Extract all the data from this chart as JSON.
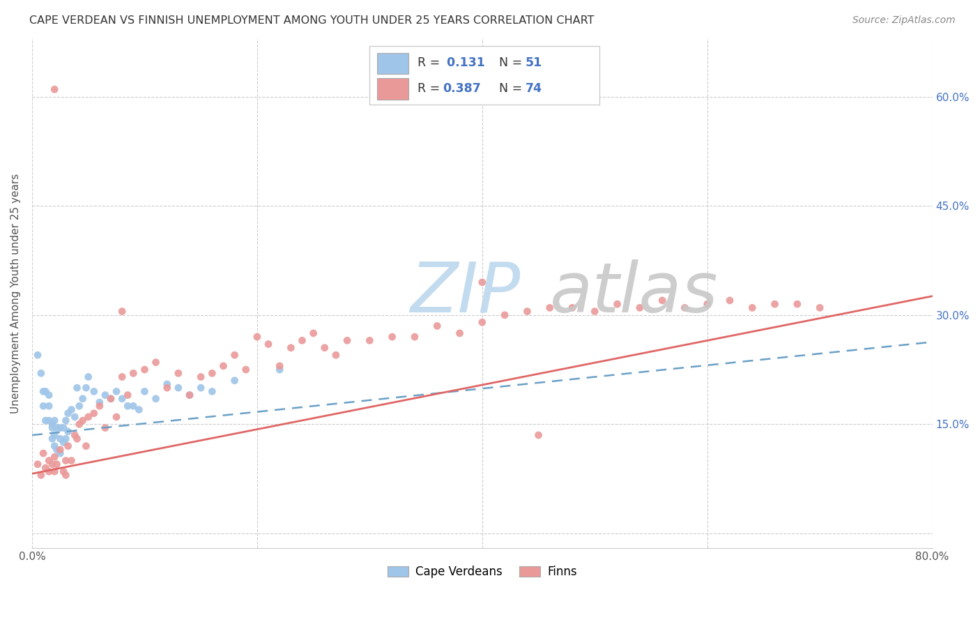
{
  "title": "CAPE VERDEAN VS FINNISH UNEMPLOYMENT AMONG YOUTH UNDER 25 YEARS CORRELATION CHART",
  "source": "Source: ZipAtlas.com",
  "ylabel": "Unemployment Among Youth under 25 years",
  "xlim": [
    0.0,
    0.8
  ],
  "ylim": [
    -0.02,
    0.68
  ],
  "yticks": [
    0.0,
    0.15,
    0.3,
    0.45,
    0.6
  ],
  "yticklabels_right": [
    "",
    "15.0%",
    "30.0%",
    "45.0%",
    "60.0%"
  ],
  "blue_color": "#9FC5E8",
  "pink_color": "#EA9999",
  "blue_line_color": "#6AA0C7",
  "pink_line_color": "#E06666",
  "watermark_zip": "ZIP",
  "watermark_atlas": "atlas",
  "watermark_color_zip": "#BDD7EE",
  "watermark_color_atlas": "#C9C9C9",
  "legend_r1_label": "R = ",
  "legend_r1_val": " 0.131",
  "legend_n1_label": "N = ",
  "legend_n1_val": "51",
  "legend_r2_label": "R = ",
  "legend_r2_val": "0.387",
  "legend_n2_label": "N = ",
  "legend_n2_val": "74",
  "cv_x": [
    0.005,
    0.008,
    0.01,
    0.01,
    0.012,
    0.012,
    0.015,
    0.015,
    0.015,
    0.018,
    0.018,
    0.018,
    0.02,
    0.02,
    0.02,
    0.022,
    0.022,
    0.025,
    0.025,
    0.025,
    0.028,
    0.028,
    0.03,
    0.03,
    0.032,
    0.032,
    0.035,
    0.038,
    0.04,
    0.042,
    0.045,
    0.048,
    0.05,
    0.055,
    0.06,
    0.065,
    0.07,
    0.075,
    0.08,
    0.085,
    0.09,
    0.095,
    0.1,
    0.11,
    0.12,
    0.13,
    0.14,
    0.15,
    0.16,
    0.18,
    0.22
  ],
  "cv_y": [
    0.245,
    0.22,
    0.195,
    0.175,
    0.195,
    0.155,
    0.19,
    0.175,
    0.155,
    0.15,
    0.145,
    0.13,
    0.155,
    0.135,
    0.12,
    0.145,
    0.115,
    0.145,
    0.13,
    0.11,
    0.145,
    0.125,
    0.155,
    0.13,
    0.165,
    0.14,
    0.17,
    0.16,
    0.2,
    0.175,
    0.185,
    0.2,
    0.215,
    0.195,
    0.18,
    0.19,
    0.185,
    0.195,
    0.185,
    0.175,
    0.175,
    0.17,
    0.195,
    0.185,
    0.205,
    0.2,
    0.19,
    0.2,
    0.195,
    0.21,
    0.225
  ],
  "finn_x": [
    0.005,
    0.008,
    0.01,
    0.012,
    0.015,
    0.015,
    0.018,
    0.02,
    0.02,
    0.022,
    0.025,
    0.028,
    0.03,
    0.03,
    0.032,
    0.035,
    0.038,
    0.04,
    0.042,
    0.045,
    0.048,
    0.05,
    0.055,
    0.06,
    0.065,
    0.07,
    0.075,
    0.08,
    0.085,
    0.09,
    0.1,
    0.11,
    0.12,
    0.13,
    0.14,
    0.15,
    0.16,
    0.17,
    0.18,
    0.19,
    0.2,
    0.21,
    0.22,
    0.23,
    0.24,
    0.25,
    0.26,
    0.27,
    0.28,
    0.3,
    0.32,
    0.34,
    0.36,
    0.38,
    0.4,
    0.42,
    0.44,
    0.46,
    0.48,
    0.5,
    0.52,
    0.54,
    0.56,
    0.58,
    0.6,
    0.62,
    0.64,
    0.66,
    0.68,
    0.7,
    0.08,
    0.02,
    0.4,
    0.45
  ],
  "finn_y": [
    0.095,
    0.08,
    0.11,
    0.09,
    0.1,
    0.085,
    0.095,
    0.105,
    0.085,
    0.095,
    0.115,
    0.085,
    0.1,
    0.08,
    0.12,
    0.1,
    0.135,
    0.13,
    0.15,
    0.155,
    0.12,
    0.16,
    0.165,
    0.175,
    0.145,
    0.185,
    0.16,
    0.215,
    0.19,
    0.22,
    0.225,
    0.235,
    0.2,
    0.22,
    0.19,
    0.215,
    0.22,
    0.23,
    0.245,
    0.225,
    0.27,
    0.26,
    0.23,
    0.255,
    0.265,
    0.275,
    0.255,
    0.245,
    0.265,
    0.265,
    0.27,
    0.27,
    0.285,
    0.275,
    0.29,
    0.3,
    0.305,
    0.31,
    0.31,
    0.305,
    0.315,
    0.31,
    0.32,
    0.31,
    0.315,
    0.32,
    0.31,
    0.315,
    0.315,
    0.31,
    0.305,
    0.61,
    0.345,
    0.135
  ]
}
